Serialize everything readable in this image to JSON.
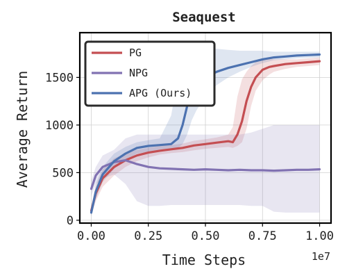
{
  "chart_data": {
    "type": "line",
    "title": "Seaquest",
    "xlabel": "Time Steps",
    "ylabel": "Average Return",
    "x_scale_label": "1e7",
    "xlim": [
      -0.05,
      1.05
    ],
    "ylim": [
      -30,
      1970
    ],
    "xticks": [
      0.0,
      0.25,
      0.5,
      0.75,
      1.0
    ],
    "xtick_labels": [
      "0.00",
      "0.25",
      "0.50",
      "0.75",
      "1.00"
    ],
    "yticks": [
      0,
      500,
      1000,
      1500
    ],
    "ytick_labels": [
      "0",
      "500",
      "1000",
      "1500"
    ],
    "grid": true,
    "legend_position": "top-left",
    "series": [
      {
        "name": "PG",
        "color": "#c44e52",
        "x": [
          0.0,
          0.02,
          0.05,
          0.1,
          0.15,
          0.2,
          0.25,
          0.3,
          0.35,
          0.4,
          0.45,
          0.5,
          0.55,
          0.6,
          0.62,
          0.64,
          0.66,
          0.68,
          0.7,
          0.72,
          0.75,
          0.78,
          0.8,
          0.85,
          0.9,
          0.95,
          1.0
        ],
        "y": [
          100,
          280,
          440,
          560,
          630,
          680,
          710,
          730,
          745,
          760,
          785,
          800,
          815,
          830,
          820,
          900,
          1040,
          1250,
          1400,
          1500,
          1580,
          1610,
          1620,
          1640,
          1650,
          1660,
          1670
        ],
        "lower": [
          50,
          200,
          350,
          470,
          560,
          620,
          660,
          690,
          705,
          715,
          735,
          750,
          760,
          770,
          760,
          780,
          820,
          960,
          1200,
          1360,
          1470,
          1530,
          1560,
          1590,
          1610,
          1620,
          1630
        ],
        "upper": [
          150,
          360,
          530,
          650,
          700,
          740,
          760,
          780,
          790,
          805,
          835,
          850,
          870,
          900,
          980,
          1300,
          1480,
          1560,
          1620,
          1660,
          1690,
          1700,
          1690,
          1690,
          1690,
          1700,
          1710
        ]
      },
      {
        "name": "NPG",
        "color": "#8172b2",
        "x": [
          0.0,
          0.02,
          0.05,
          0.1,
          0.15,
          0.2,
          0.25,
          0.3,
          0.35,
          0.4,
          0.45,
          0.5,
          0.55,
          0.6,
          0.65,
          0.7,
          0.75,
          0.8,
          0.85,
          0.9,
          0.95,
          1.0
        ],
        "y": [
          330,
          470,
          560,
          610,
          630,
          590,
          560,
          545,
          540,
          535,
          530,
          535,
          530,
          525,
          530,
          525,
          525,
          520,
          525,
          530,
          530,
          535
        ],
        "lower": [
          250,
          380,
          440,
          480,
          380,
          200,
          150,
          150,
          160,
          160,
          160,
          160,
          160,
          160,
          160,
          150,
          150,
          90,
          80,
          80,
          80,
          80
        ],
        "upper": [
          420,
          560,
          680,
          740,
          860,
          900,
          900,
          900,
          900,
          900,
          900,
          900,
          900,
          900,
          900,
          920,
          960,
          1000,
          1000,
          1000,
          1000,
          1000
        ]
      },
      {
        "name": "APG (Ours)",
        "color": "#4c72b0",
        "x": [
          0.0,
          0.02,
          0.05,
          0.1,
          0.15,
          0.2,
          0.25,
          0.3,
          0.35,
          0.38,
          0.4,
          0.42,
          0.44,
          0.46,
          0.5,
          0.55,
          0.6,
          0.65,
          0.7,
          0.75,
          0.8,
          0.85,
          0.9,
          0.95,
          1.0
        ],
        "y": [
          80,
          300,
          480,
          620,
          700,
          760,
          780,
          790,
          800,
          860,
          1000,
          1200,
          1350,
          1420,
          1500,
          1560,
          1600,
          1630,
          1660,
          1690,
          1710,
          1720,
          1730,
          1735,
          1740
        ],
        "lower": [
          40,
          220,
          400,
          540,
          630,
          700,
          720,
          730,
          740,
          760,
          800,
          900,
          1050,
          1150,
          1300,
          1420,
          1500,
          1560,
          1610,
          1650,
          1680,
          1690,
          1700,
          1705,
          1710
        ],
        "upper": [
          120,
          380,
          560,
          700,
          770,
          820,
          840,
          860,
          1100,
          1500,
          1700,
          1800,
          1820,
          1820,
          1810,
          1800,
          1790,
          1780,
          1780,
          1780,
          1770,
          1770,
          1770,
          1770,
          1770
        ]
      }
    ]
  }
}
